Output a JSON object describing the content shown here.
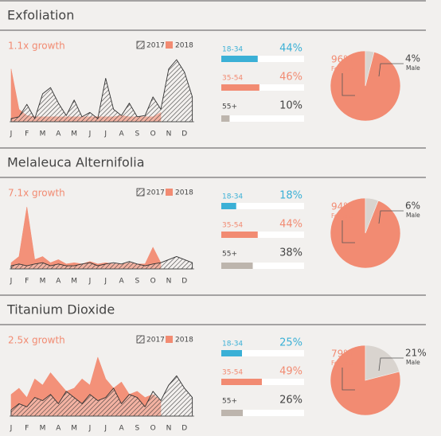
{
  "chart_data": [
    {
      "type": "area",
      "title": "Exfoliation",
      "subtitle": "1.1x growth",
      "x": [
        0,
        0.5,
        1,
        1.5,
        2,
        2.5,
        3,
        3.5,
        4,
        4.5,
        5,
        5.5,
        6,
        6.5,
        7,
        7.5,
        8,
        8.5,
        9,
        9.5,
        10,
        10.5,
        11,
        11.5
      ],
      "xlim": [
        -0.1,
        11.62
      ],
      "ylim": [
        0,
        100
      ],
      "xticks": [
        {
          "value": 0,
          "label": "J"
        },
        {
          "value": 1,
          "label": "F"
        },
        {
          "value": 2,
          "label": "M"
        },
        {
          "value": 3,
          "label": "A"
        },
        {
          "value": 4,
          "label": "M"
        },
        {
          "value": 5,
          "label": "J"
        },
        {
          "value": 6,
          "label": "J"
        },
        {
          "value": 7,
          "label": "A"
        },
        {
          "value": 8,
          "label": "S"
        },
        {
          "value": 9,
          "label": "O"
        },
        {
          "value": 10,
          "label": "N"
        },
        {
          "value": 11,
          "label": "D"
        }
      ],
      "series": [
        {
          "name": "2017",
          "color": "#333333",
          "values": [
            5,
            8,
            28,
            5,
            45,
            55,
            30,
            10,
            35,
            8,
            15,
            5,
            70,
            20,
            10,
            30,
            8,
            10,
            40,
            20,
            85,
            100,
            80,
            40
          ]
        },
        {
          "name": "2018",
          "color": "#f28b72",
          "values": [
            85,
            20,
            10,
            8,
            8,
            8,
            8,
            8,
            8,
            8,
            8,
            8,
            8,
            8,
            10,
            8,
            8,
            8,
            8,
            15,
            null,
            null,
            null,
            null
          ]
        }
      ]
    },
    {
      "type": "bar",
      "categories": [
        "18-34",
        "35-54",
        "55+"
      ],
      "values": [
        44,
        46,
        10
      ],
      "value_labels": [
        "44%",
        "46%",
        "10%"
      ],
      "colors": [
        "#3bb0d6",
        "#f28b72",
        "#bdb5ad"
      ],
      "xlim": [
        0,
        100
      ]
    },
    {
      "type": "pie",
      "categories": [
        "Female",
        "Male"
      ],
      "values": [
        96,
        4
      ],
      "value_labels": [
        "96%",
        "4%"
      ],
      "colors": [
        "#f28b72",
        "#d9d4cf"
      ]
    },
    {
      "type": "area",
      "title": "Melaleuca Alternifolia",
      "subtitle": "7.1x growth",
      "x": [
        0,
        0.5,
        1,
        1.5,
        2,
        2.5,
        3,
        3.5,
        4,
        4.5,
        5,
        5.5,
        6,
        6.5,
        7,
        7.5,
        8,
        8.5,
        9,
        9.5,
        10,
        10.5,
        11,
        11.5
      ],
      "xlim": [
        -0.1,
        11.62
      ],
      "ylim": [
        0,
        100
      ],
      "xticks": [
        {
          "value": 0,
          "label": "J"
        },
        {
          "value": 1,
          "label": "F"
        },
        {
          "value": 2,
          "label": "M"
        },
        {
          "value": 3,
          "label": "A"
        },
        {
          "value": 4,
          "label": "M"
        },
        {
          "value": 5,
          "label": "J"
        },
        {
          "value": 6,
          "label": "J"
        },
        {
          "value": 7,
          "label": "A"
        },
        {
          "value": 8,
          "label": "S"
        },
        {
          "value": 9,
          "label": "O"
        },
        {
          "value": 10,
          "label": "N"
        },
        {
          "value": 11,
          "label": "D"
        }
      ],
      "series": [
        {
          "name": "2017",
          "color": "#333333",
          "values": [
            5,
            8,
            5,
            8,
            10,
            5,
            8,
            5,
            5,
            8,
            10,
            5,
            8,
            10,
            8,
            12,
            8,
            5,
            8,
            10,
            15,
            20,
            15,
            10
          ]
        },
        {
          "name": "2018",
          "color": "#f28b72",
          "values": [
            10,
            20,
            100,
            15,
            20,
            10,
            15,
            8,
            10,
            8,
            12,
            8,
            10,
            8,
            8,
            10,
            8,
            8,
            35,
            10,
            null,
            null,
            null,
            null
          ]
        }
      ]
    },
    {
      "type": "bar",
      "categories": [
        "18-34",
        "35-54",
        "55+"
      ],
      "values": [
        18,
        44,
        38
      ],
      "value_labels": [
        "18%",
        "44%",
        "38%"
      ],
      "colors": [
        "#3bb0d6",
        "#f28b72",
        "#bdb5ad"
      ],
      "xlim": [
        0,
        100
      ]
    },
    {
      "type": "pie",
      "categories": [
        "Female",
        "Male"
      ],
      "values": [
        94,
        6
      ],
      "value_labels": [
        "94%",
        "6%"
      ],
      "colors": [
        "#f28b72",
        "#d9d4cf"
      ]
    },
    {
      "type": "area",
      "title": "Titanium Dioxide",
      "subtitle": "2.5x growth",
      "x": [
        0,
        0.5,
        1,
        1.5,
        2,
        2.5,
        3,
        3.5,
        4,
        4.5,
        5,
        5.5,
        6,
        6.5,
        7,
        7.5,
        8,
        8.5,
        9,
        9.5,
        10,
        10.5,
        11,
        11.5
      ],
      "xlim": [
        -0.1,
        11.62
      ],
      "ylim": [
        0,
        100
      ],
      "xticks": [
        {
          "value": 0,
          "label": "J"
        },
        {
          "value": 1,
          "label": "F"
        },
        {
          "value": 2,
          "label": "M"
        },
        {
          "value": 3,
          "label": "A"
        },
        {
          "value": 4,
          "label": "M"
        },
        {
          "value": 5,
          "label": "J"
        },
        {
          "value": 6,
          "label": "J"
        },
        {
          "value": 7,
          "label": "A"
        },
        {
          "value": 8,
          "label": "S"
        },
        {
          "value": 9,
          "label": "O"
        },
        {
          "value": 10,
          "label": "N"
        },
        {
          "value": 11,
          "label": "D"
        }
      ],
      "series": [
        {
          "name": "2017",
          "color": "#333333",
          "values": [
            10,
            20,
            15,
            30,
            25,
            35,
            20,
            40,
            30,
            20,
            35,
            25,
            30,
            45,
            20,
            35,
            30,
            15,
            40,
            25,
            50,
            65,
            45,
            30
          ]
        },
        {
          "name": "2018",
          "color": "#f28b72",
          "values": [
            35,
            45,
            30,
            60,
            50,
            70,
            55,
            40,
            45,
            60,
            50,
            95,
            60,
            45,
            55,
            35,
            40,
            30,
            35,
            25,
            null,
            null,
            null,
            null
          ]
        }
      ]
    },
    {
      "type": "bar",
      "categories": [
        "18-34",
        "35-54",
        "55+"
      ],
      "values": [
        25,
        49,
        26
      ],
      "value_labels": [
        "25%",
        "49%",
        "26%"
      ],
      "colors": [
        "#3bb0d6",
        "#f28b72",
        "#bdb5ad"
      ],
      "xlim": [
        0,
        100
      ]
    },
    {
      "type": "pie",
      "categories": [
        "Female",
        "Male"
      ],
      "values": [
        79,
        21
      ],
      "value_labels": [
        "79%",
        "21%"
      ],
      "colors": [
        "#f28b72",
        "#d9d4cf"
      ]
    }
  ]
}
